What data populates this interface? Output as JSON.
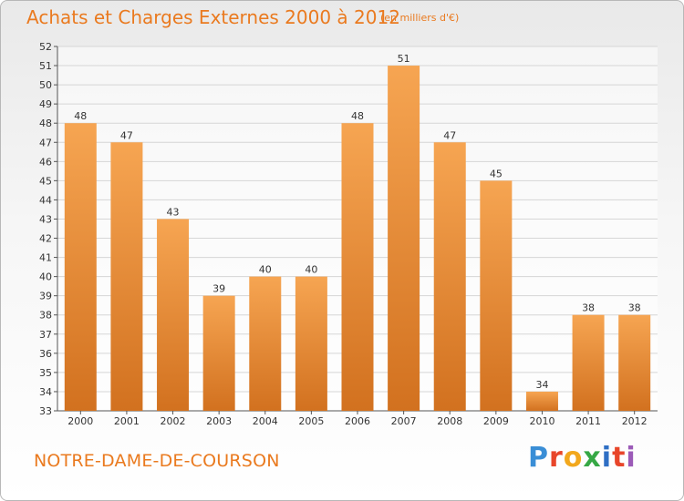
{
  "header": {
    "title": "Achats et Charges Externes 2000 à 2012",
    "unit": "(en milliers d'€)"
  },
  "footer": {
    "commune": "NOTRE-DAME-DE-COURSON",
    "logo": [
      "P",
      "r",
      "o",
      "x",
      "i",
      "t",
      "i"
    ]
  },
  "colors": {
    "bar_top": "#f6a552",
    "bar_bottom": "#d2711f",
    "title": "#ea7a1f",
    "grid": "#d6d6d6"
  },
  "chart_data": {
    "type": "bar",
    "title": "Achats et Charges Externes 2000 à 2012",
    "xlabel": "",
    "ylabel": "",
    "categories": [
      "2000",
      "2001",
      "2002",
      "2003",
      "2004",
      "2005",
      "2006",
      "2007",
      "2008",
      "2009",
      "2010",
      "2011",
      "2012"
    ],
    "values": [
      48,
      47,
      43,
      39,
      40,
      40,
      48,
      51,
      47,
      45,
      34,
      38,
      38
    ],
    "ylim": [
      33,
      52
    ],
    "yticks": [
      33,
      34,
      35,
      36,
      37,
      38,
      39,
      40,
      41,
      42,
      43,
      44,
      45,
      46,
      47,
      48,
      49,
      50,
      51,
      52
    ],
    "grid": true,
    "legend": "none"
  }
}
